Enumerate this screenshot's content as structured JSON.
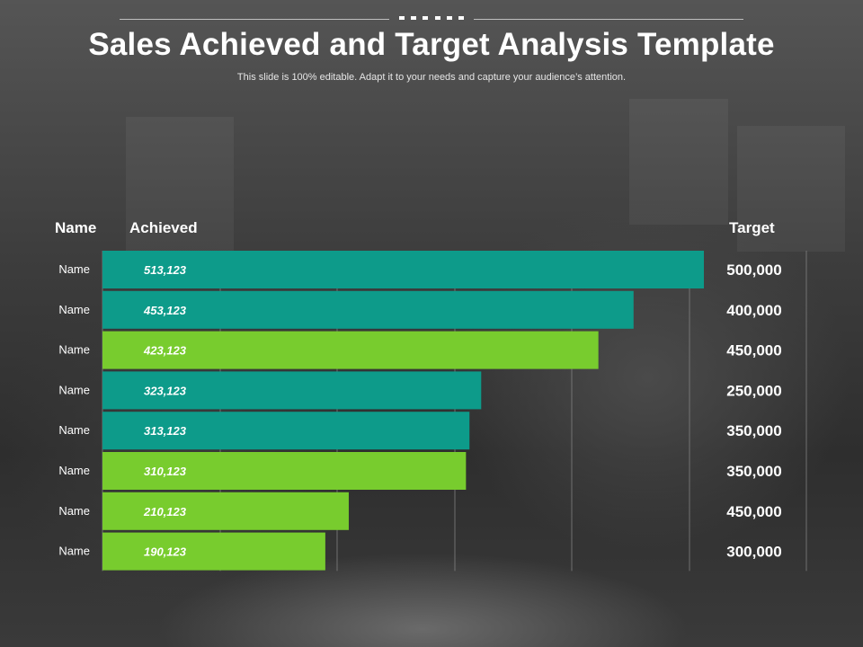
{
  "header": {
    "title": "Sales Achieved and Target Analysis Template",
    "subtitle": "This slide is 100% editable. Adapt it to your needs and capture your audience’s attention."
  },
  "columns": {
    "name": "Name",
    "achieved": "Achieved",
    "target": "Target"
  },
  "colors": {
    "teal": "#0d9b8a",
    "green": "#78cc2e",
    "grid": "#8a8a8a"
  },
  "chart_data": {
    "type": "bar",
    "orientation": "horizontal",
    "categories": [
      "Name",
      "Name",
      "Name",
      "Name",
      "Name",
      "Name",
      "Name",
      "Name"
    ],
    "series": [
      {
        "name": "Achieved",
        "values": [
          513123,
          453123,
          423123,
          323123,
          313123,
          310123,
          210123,
          190123
        ]
      }
    ],
    "value_labels": [
      "513,123",
      "453,123",
      "423,123",
      "323,123",
      "313,123",
      "310,123",
      "210,123",
      "190,123"
    ],
    "target_values": [
      500000,
      400000,
      450000,
      250000,
      350000,
      350000,
      450000,
      300000
    ],
    "target_labels": [
      "500,000",
      "400,000",
      "450,000",
      "250,000",
      "350,000",
      "350,000",
      "450,000",
      "300,000"
    ],
    "bar_colors": [
      "teal",
      "teal",
      "green",
      "teal",
      "teal",
      "green",
      "green",
      "green"
    ],
    "xlim": [
      0,
      513123
    ],
    "grid": true
  }
}
